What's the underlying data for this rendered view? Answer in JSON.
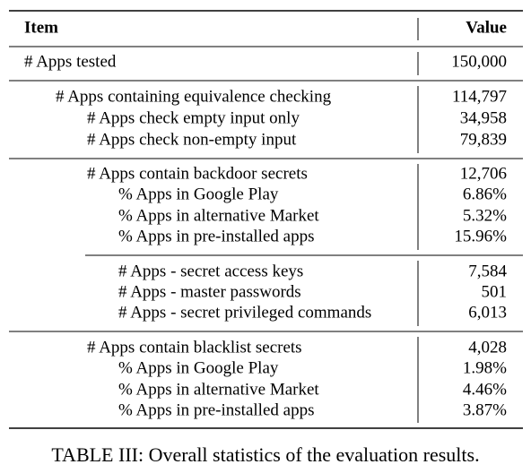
{
  "table": {
    "header": [
      "Item",
      "Value"
    ],
    "groups": [
      [
        [
          "# Apps tested",
          "150,000"
        ]
      ],
      [
        [
          "# Apps containing equivalence checking",
          "114,797"
        ],
        [
          "# Apps check empty input only",
          "34,958"
        ],
        [
          "# Apps check non-empty input",
          "79,839"
        ]
      ],
      [
        [
          "# Apps contain backdoor secrets",
          "12,706"
        ],
        [
          "% Apps in Google Play",
          "6.86%"
        ],
        [
          "% Apps in alternative Market",
          "5.32%"
        ],
        [
          "% Apps in pre-installed apps",
          "15.96%"
        ]
      ],
      [
        [
          "# Apps - secret access keys",
          "7,584"
        ],
        [
          "# Apps - master passwords",
          "501"
        ],
        [
          "# Apps - secret privileged commands",
          "6,013"
        ]
      ],
      [
        [
          "# Apps contain blacklist secrets",
          "4,028"
        ],
        [
          "% Apps in Google Play",
          "1.98%"
        ],
        [
          "% Apps in alternative Market",
          "4.46%"
        ],
        [
          "% Apps in pre-installed apps",
          "3.87%"
        ]
      ]
    ]
  },
  "caption": "TABLE III: Overall statistics of the evaluation results."
}
